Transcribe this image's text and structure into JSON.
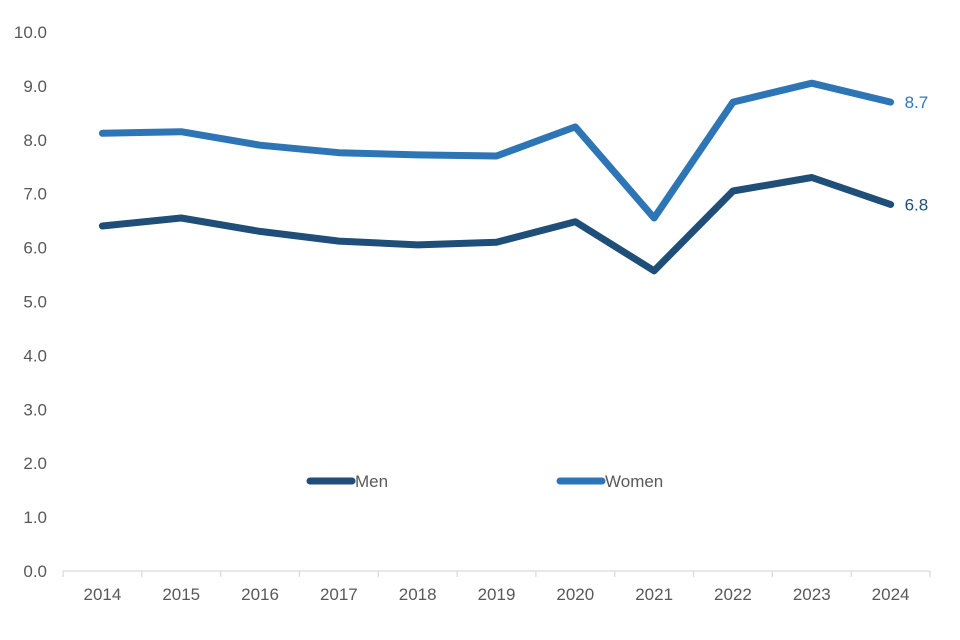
{
  "chart_data": {
    "type": "line",
    "title": "",
    "xlabel": "",
    "ylabel": "",
    "x": [
      "2014",
      "2015",
      "2016",
      "2017",
      "2018",
      "2019",
      "2020",
      "2021",
      "2022",
      "2023",
      "2024"
    ],
    "ylim": [
      0,
      10
    ],
    "y_ticks": [
      "0.0",
      "1.0",
      "2.0",
      "3.0",
      "4.0",
      "5.0",
      "6.0",
      "7.0",
      "8.0",
      "9.0",
      "10.0"
    ],
    "grid": false,
    "legend_position": "inside-bottom-center",
    "series": [
      {
        "name": "Men",
        "color": "#1f4e79",
        "values": [
          6.4,
          6.55,
          6.3,
          6.12,
          6.05,
          6.1,
          6.48,
          5.57,
          7.05,
          7.3,
          6.8
        ],
        "end_label": "6.8"
      },
      {
        "name": "Women",
        "color": "#2e75b6",
        "values": [
          8.12,
          8.15,
          7.9,
          7.76,
          7.72,
          7.7,
          8.24,
          6.55,
          8.7,
          9.05,
          8.7
        ],
        "end_label": "8.7"
      }
    ]
  }
}
